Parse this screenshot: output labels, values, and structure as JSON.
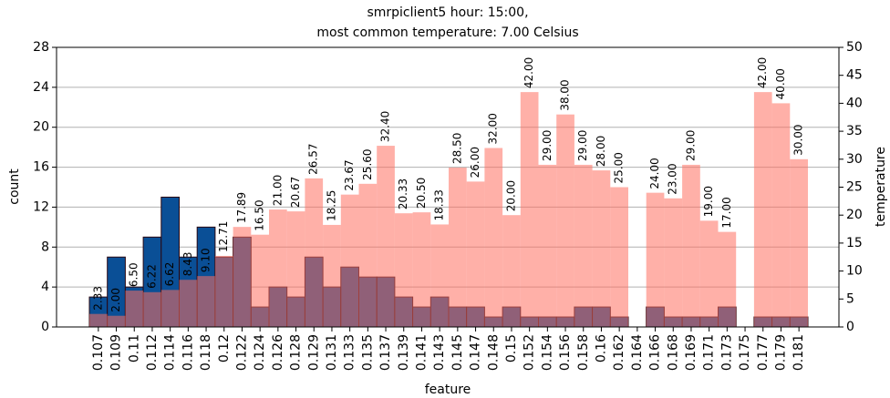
{
  "chart_data": {
    "type": "bar",
    "title": [
      "smrpiclient5 hour: 15:00,",
      "most common temperature: 7.00 Celsius"
    ],
    "xlabel": "feature",
    "ylabel": "count",
    "y2label": "temperature",
    "categories": [
      "0.107",
      "0.109",
      "0.11",
      "0.112",
      "0.114",
      "0.116",
      "0.118",
      "0.12",
      "0.122",
      "0.124",
      "0.126",
      "0.128",
      "0.129",
      "0.131",
      "0.133",
      "0.135",
      "0.137",
      "0.139",
      "0.141",
      "0.143",
      "0.145",
      "0.147",
      "0.148",
      "0.15",
      "0.152",
      "0.154",
      "0.156",
      "0.158",
      "0.16",
      "0.162",
      "0.164",
      "0.166",
      "0.168",
      "0.169",
      "0.171",
      "0.173",
      "0.175",
      "0.177",
      "0.179",
      "0.181"
    ],
    "series": [
      {
        "color": "#0a4f96",
        "values": [
          3,
          7,
          4,
          9,
          13,
          7,
          10,
          7,
          9,
          2,
          4,
          3,
          7,
          4,
          6,
          5,
          5,
          3,
          2,
          3,
          2,
          2,
          1,
          2,
          1,
          1,
          1,
          2,
          2,
          1,
          0,
          2,
          1,
          1,
          1,
          2,
          0,
          1,
          1,
          1
        ]
      },
      {
        "color": "#ff6f61",
        "axis": "y2",
        "values": [
          2.33,
          2,
          6.5,
          6.22,
          6.62,
          8.43,
          9.1,
          12.71,
          17.89,
          16.5,
          21,
          20.67,
          26.57,
          18.25,
          23.67,
          25.6,
          32.4,
          20.33,
          20.5,
          18.33,
          28.5,
          26,
          32,
          20,
          42,
          29,
          38,
          29,
          28,
          25,
          null,
          24,
          23,
          29,
          19,
          17,
          null,
          42,
          40,
          30
        ],
        "value_labels": [
          "2.33",
          "2.00",
          "6.50",
          "6.22",
          "6.62",
          "8.43",
          "9.10",
          "12.71",
          "17.89",
          "16.50",
          "21.00",
          "20.67",
          "26.57",
          "18.25",
          "23.67",
          "25.60",
          "32.40",
          "20.33",
          "20.50",
          "18.33",
          "28.50",
          "26.00",
          "32.00",
          "20.00",
          "42.00",
          "29.00",
          "38.00",
          "29.00",
          "28.00",
          "25.00",
          null,
          "24.00",
          "23.00",
          "29.00",
          "19.00",
          "17.00",
          null,
          "42.00",
          "40.00",
          "30.00"
        ]
      }
    ],
    "ylim": [
      0,
      28
    ],
    "yticks": [
      0,
      4,
      8,
      12,
      16,
      20,
      24,
      28
    ],
    "y2lim": [
      0,
      50
    ],
    "y2ticks": [
      0,
      5,
      10,
      15,
      20,
      25,
      30,
      35,
      40,
      45,
      50
    ],
    "grid": true
  }
}
